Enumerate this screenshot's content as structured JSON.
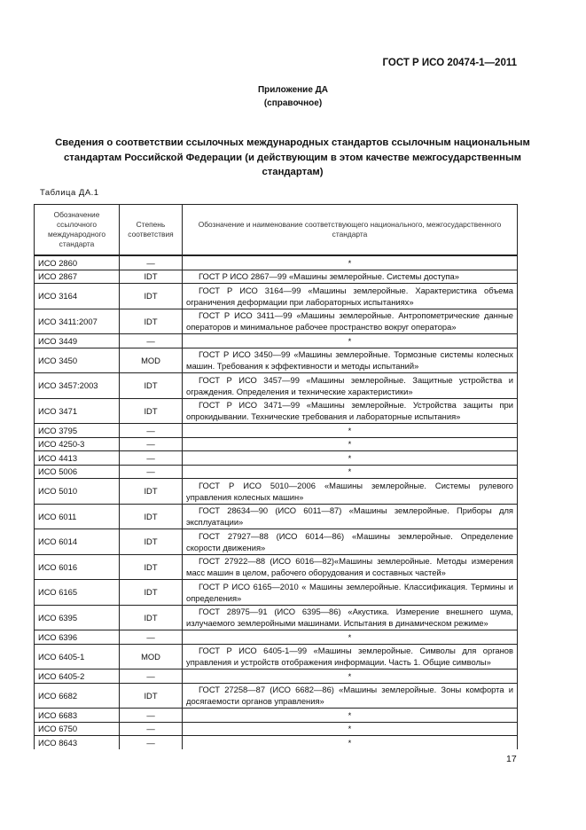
{
  "header": {
    "doc_code": "ГОСТ Р ИСО 20474-1—2011"
  },
  "annex": {
    "title": "Приложение ДА",
    "subtitle": "(справочное)"
  },
  "heading": "Сведения о соответствии ссылочных международных стандартов ссылочным национальным стандартам Российской Федерации (и действующим в этом качестве межгосударственным стандартам)",
  "table_caption": "Таблица ДА.1",
  "table": {
    "columns": [
      "Обозначение ссылочного международного стандарта",
      "Степень соответствия",
      "Обозначение и наименование соответствующего национального, межгосударственного стандарта"
    ],
    "rows": [
      {
        "intl": "ИСО 2860",
        "degree": "—",
        "national": "*"
      },
      {
        "intl": "ИСО 2867",
        "degree": "IDT",
        "national": "ГОСТ Р ИСО 2867—99 «Машины землеройные. Системы доступа»"
      },
      {
        "intl": "ИСО 3164",
        "degree": "IDT",
        "national": "ГОСТ Р ИСО 3164—99 «Машины землеройные. Характеристика объема ограничения деформации при лабораторных испытаниях»"
      },
      {
        "intl": "ИСО 3411:2007",
        "degree": "IDT",
        "national": "ГОСТ Р ИСО 3411—99 «Машины землеройные. Антропометрические данные операторов и минимальное рабочее пространство вокруг оператора»"
      },
      {
        "intl": "ИСО 3449",
        "degree": "—",
        "national": "*"
      },
      {
        "intl": "ИСО 3450",
        "degree": "MOD",
        "national": "ГОСТ Р ИСО 3450—99 «Машины землеройные. Тормозные системы колесных машин. Требования к эффективности и методы испытаний»"
      },
      {
        "intl": "ИСО 3457:2003",
        "degree": "IDT",
        "national": "ГОСТ Р ИСО 3457—99 «Машины землеройные. Защитные устройства и ограждения. Определения и технические характеристики»"
      },
      {
        "intl": "ИСО 3471",
        "degree": "IDT",
        "national": "ГОСТ Р ИСО 3471—99 «Машины землеройные. Устройства защиты при опрокидывании. Технические требования и лабораторные испытания»"
      },
      {
        "intl": "ИСО 3795",
        "degree": "—",
        "national": "*"
      },
      {
        "intl": "ИСО 4250-3",
        "degree": "—",
        "national": "*"
      },
      {
        "intl": "ИСО 4413",
        "degree": "—",
        "national": "*"
      },
      {
        "intl": "ИСО 5006",
        "degree": "—",
        "national": "*"
      },
      {
        "intl": "ИСО 5010",
        "degree": "IDT",
        "national": "ГОСТ Р ИСО 5010—2006 «Машины землеройные. Системы рулевого управления колесных машин»"
      },
      {
        "intl": "ИСО 6011",
        "degree": "IDT",
        "national": "ГОСТ 28634—90 (ИСО 6011—87) «Машины землеройные. Приборы для эксплуатации»"
      },
      {
        "intl": "ИСО 6014",
        "degree": "IDT",
        "national": "ГОСТ 27927—88 (ИСО 6014—86) «Машины землеройные. Определение скорости движения»"
      },
      {
        "intl": "ИСО 6016",
        "degree": "IDT",
        "national": "ГОСТ 27922—88 (ИСО 6016—82)«Машины землеройные. Методы измерения масс машин в целом, рабочего оборудования и составных частей»"
      },
      {
        "intl": "ИСО 6165",
        "degree": "IDT",
        "national": "ГОСТ Р ИСО 6165—2010 « Машины землеройные. Классификация. Термины и определения»"
      },
      {
        "intl": "ИСО 6395",
        "degree": "IDT",
        "national": "ГОСТ 28975—91 (ИСО 6395—86) «Акустика. Измерение внешнего шума, излучаемого землеройными машинами. Испытания в динамическом режиме»"
      },
      {
        "intl": "ИСО 6396",
        "degree": "—",
        "national": "*"
      },
      {
        "intl": "ИСО 6405-1",
        "degree": "MOD",
        "national": "ГОСТ Р ИСО 6405-1—99 «Машины землеройные. Символы для органов управления и устройств отображения информации. Часть 1. Общие символы»"
      },
      {
        "intl": "ИСО 6405-2",
        "degree": "—",
        "national": "*"
      },
      {
        "intl": "ИСО 6682",
        "degree": "IDT",
        "national": "ГОСТ 27258—87 (ИСО 6682—86) «Машины землеройные. Зоны комфорта и досягаемости органов управления»"
      },
      {
        "intl": "ИСО 6683",
        "degree": "—",
        "national": "*"
      },
      {
        "intl": "ИСО 6750",
        "degree": "—",
        "national": "*"
      },
      {
        "intl": "ИСО 8643",
        "degree": "—",
        "national": "*"
      }
    ]
  },
  "page_number": "17"
}
